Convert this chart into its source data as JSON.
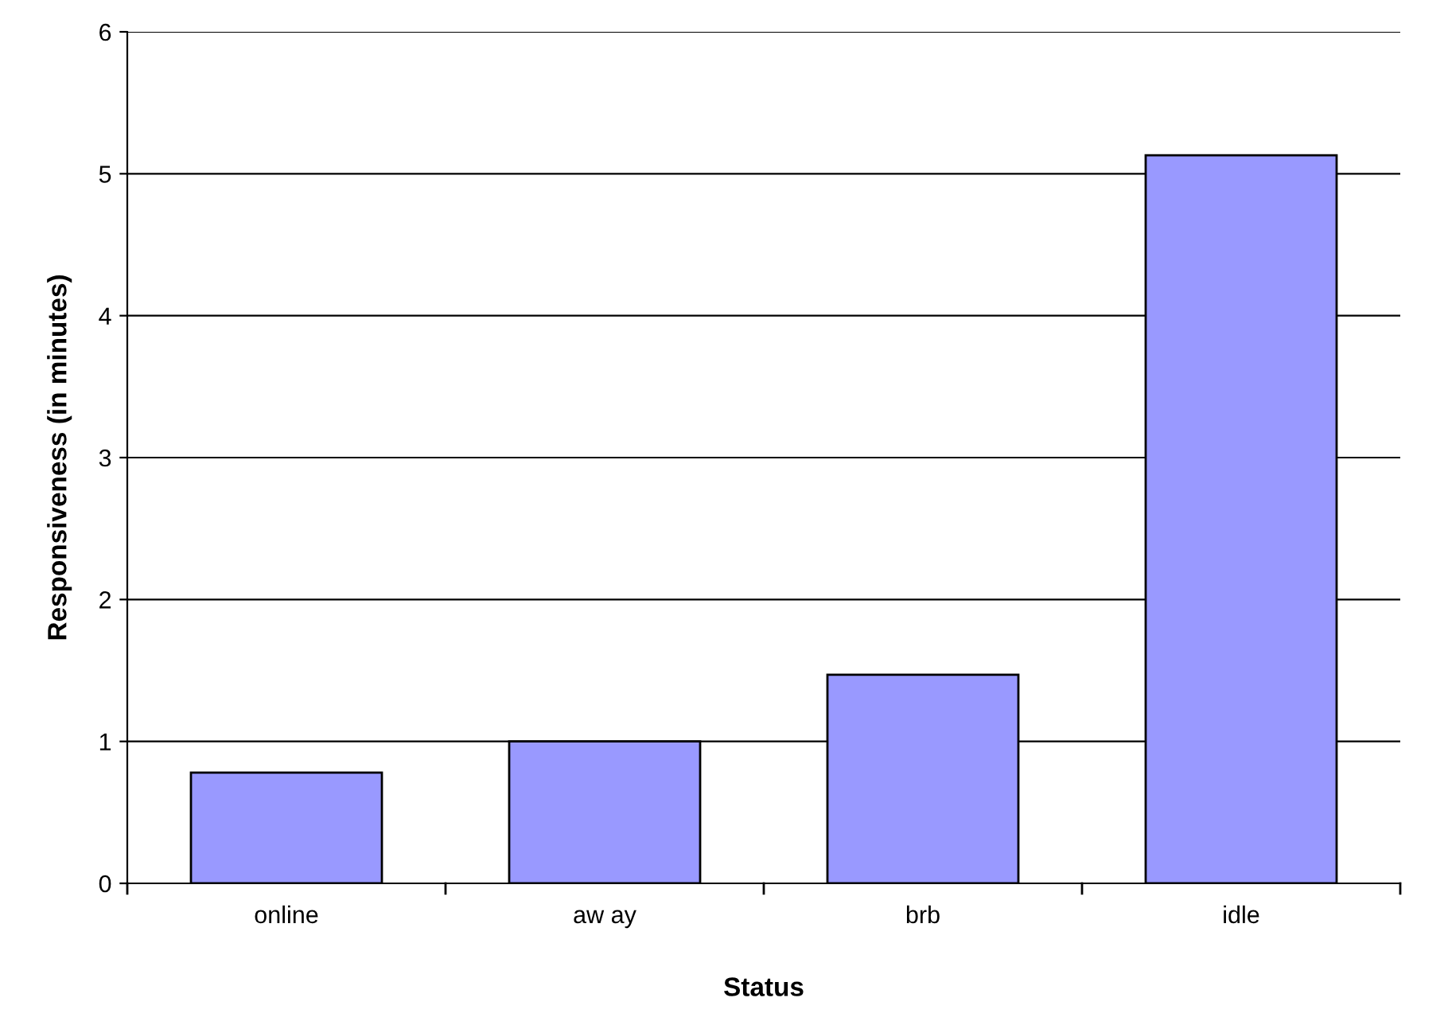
{
  "chart_data": {
    "type": "bar",
    "xlabel": "Status",
    "ylabel": "Responsiveness (in minutes)",
    "categories": [
      "online",
      "aw ay",
      "brb",
      "idle"
    ],
    "values": [
      0.78,
      1.0,
      1.47,
      5.13
    ],
    "color": "#9999ff",
    "ylim": [
      0,
      6
    ],
    "yticks": [
      0,
      1,
      2,
      3,
      4,
      5,
      6
    ],
    "grid": "y",
    "legend": false
  }
}
